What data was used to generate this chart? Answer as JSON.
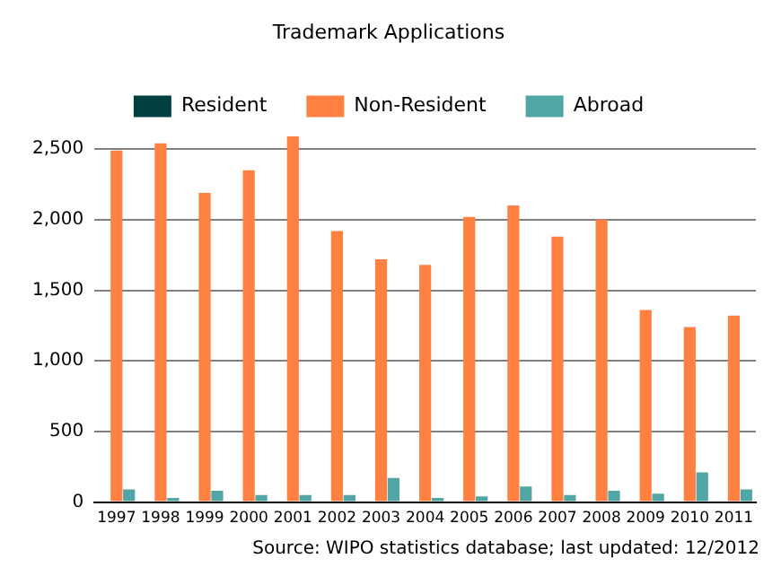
{
  "chart_data": {
    "type": "bar",
    "title": "Trademark Applications",
    "categories": [
      "1997",
      "1998",
      "1999",
      "2000",
      "2001",
      "2002",
      "2003",
      "2004",
      "2005",
      "2006",
      "2007",
      "2008",
      "2009",
      "2010",
      "2011"
    ],
    "series": [
      {
        "name": "Resident",
        "color": "#004040",
        "values": [
          null,
          null,
          null,
          null,
          null,
          null,
          null,
          null,
          null,
          null,
          null,
          null,
          null,
          null,
          null
        ]
      },
      {
        "name": "Non-Resident",
        "color": "#ff8040",
        "values": [
          2490,
          2540,
          2190,
          2350,
          2590,
          1920,
          1720,
          1680,
          2020,
          2100,
          1880,
          2000,
          1360,
          1240,
          1320
        ]
      },
      {
        "name": "Abroad",
        "color": "#52a5a5",
        "values": [
          90,
          30,
          80,
          50,
          50,
          50,
          170,
          30,
          40,
          110,
          50,
          80,
          60,
          210,
          90
        ]
      }
    ],
    "ylim": [
      0,
      2600
    ],
    "yticks": [
      {
        "value": 0,
        "label": "0"
      },
      {
        "value": 500,
        "label": "500"
      },
      {
        "value": 1000,
        "label": "1,000"
      },
      {
        "value": 1500,
        "label": "1,500"
      },
      {
        "value": 2000,
        "label": "2,000"
      },
      {
        "value": 2500,
        "label": "2,500"
      }
    ],
    "grid": "y",
    "legend": "top",
    "annotations": [
      "Source: WIPO statistics database; last updated: 12/2012"
    ]
  }
}
